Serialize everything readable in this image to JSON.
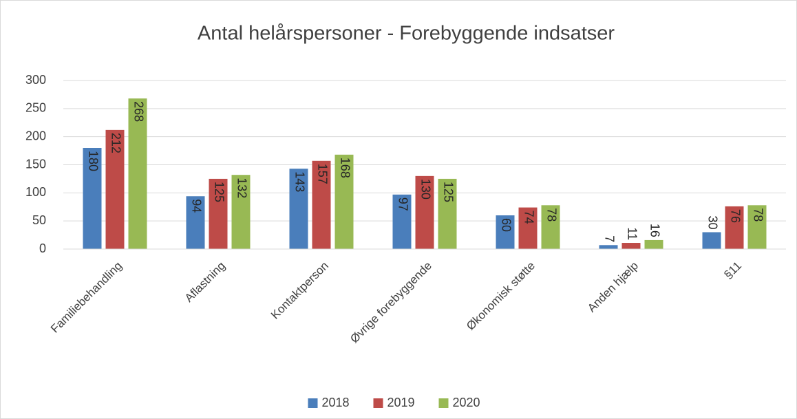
{
  "chart_data": {
    "type": "bar",
    "title": "Antal helårspersoner - Forebyggende indsatser",
    "categories": [
      "Familiebehandling",
      "Aflastning",
      "Kontaktperson",
      "Øvrige forebyggende",
      "Økonomisk støtte",
      "Anden hjælp",
      "§11"
    ],
    "series": [
      {
        "name": "2018",
        "color": "#4a7ebb",
        "values": [
          180,
          94,
          143,
          97,
          60,
          7,
          30
        ]
      },
      {
        "name": "2019",
        "color": "#be4b48",
        "values": [
          212,
          125,
          157,
          130,
          74,
          11,
          76
        ]
      },
      {
        "name": "2020",
        "color": "#98b954",
        "values": [
          268,
          132,
          168,
          125,
          78,
          16,
          78
        ]
      }
    ],
    "ylim": [
      0,
      300
    ],
    "yticks": [
      0,
      50,
      100,
      150,
      200,
      250,
      300
    ],
    "grid": true,
    "legend": "bottom"
  }
}
